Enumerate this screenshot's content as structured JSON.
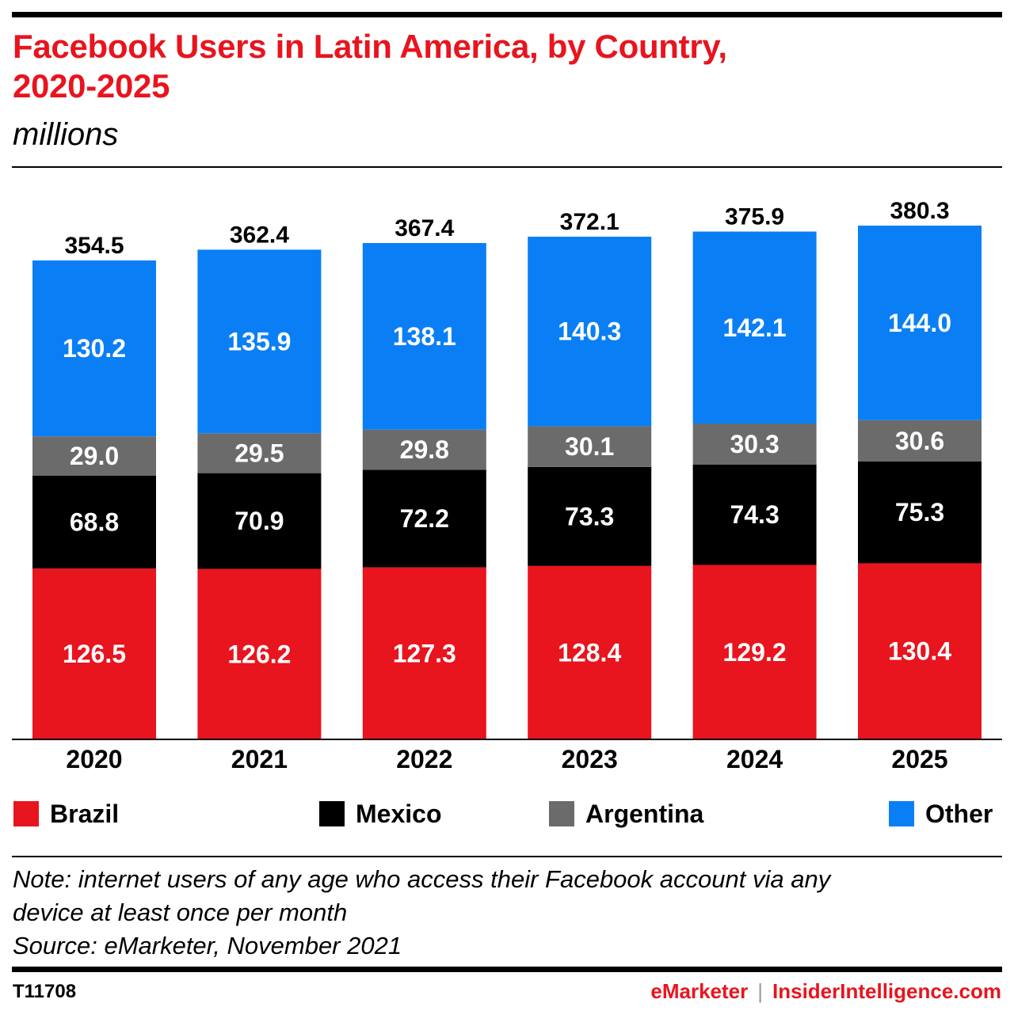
{
  "header": {
    "title_line1": "Facebook Users in Latin America, by Country,",
    "title_line2": "2020-2025",
    "subtitle": "millions"
  },
  "chart_data": {
    "type": "bar",
    "stacked": true,
    "categories": [
      "2020",
      "2021",
      "2022",
      "2023",
      "2024",
      "2025"
    ],
    "series": [
      {
        "name": "Brazil",
        "color": "#e8141e",
        "label_color": "#ffffff",
        "values": [
          126.5,
          126.2,
          127.3,
          128.4,
          129.2,
          130.4
        ]
      },
      {
        "name": "Mexico",
        "color": "#000000",
        "label_color": "#ffffff",
        "values": [
          68.8,
          70.9,
          72.2,
          73.3,
          74.3,
          75.3
        ]
      },
      {
        "name": "Argentina",
        "color": "#6b6b6b",
        "label_color": "#ffffff",
        "values": [
          29.0,
          29.5,
          29.8,
          30.1,
          30.3,
          30.6
        ]
      },
      {
        "name": "Other",
        "color": "#0a7ff5",
        "label_color": "#ffffff",
        "values": [
          130.2,
          135.9,
          138.1,
          140.3,
          142.1,
          144.0
        ]
      }
    ],
    "totals": [
      "354.5",
      "362.4",
      "367.4",
      "372.1",
      "375.9",
      "380.3"
    ],
    "value_labels": [
      [
        "126.5",
        "126.2",
        "127.3",
        "128.4",
        "129.2",
        "130.4"
      ],
      [
        "68.8",
        "70.9",
        "72.2",
        "73.3",
        "74.3",
        "75.3"
      ],
      [
        "29.0",
        "29.5",
        "29.8",
        "30.1",
        "30.3",
        "30.6"
      ],
      [
        "130.2",
        "135.9",
        "138.1",
        "140.3",
        "142.1",
        "144.0"
      ]
    ],
    "ylim": [
      0,
      380.3
    ],
    "grid": false,
    "legend_position": "bottom"
  },
  "legend": {
    "items": [
      {
        "label": "Brazil",
        "color": "#e8141e",
        "icon": "red-square-swatch"
      },
      {
        "label": "Mexico",
        "color": "#000000",
        "icon": "black-square-swatch"
      },
      {
        "label": "Argentina",
        "color": "#6b6b6b",
        "icon": "gray-square-swatch"
      },
      {
        "label": "Other",
        "color": "#0a7ff5",
        "icon": "blue-square-swatch"
      }
    ]
  },
  "notes": {
    "note_line1": "Note: internet users of any age who access their Facebook account via any",
    "note_line2": "device at least once per month",
    "source": "Source: eMarketer, November 2021"
  },
  "footer": {
    "chart_id": "T11708",
    "brand_primary": "eMarketer",
    "separator": "|",
    "brand_secondary": "InsiderIntelligence.com"
  }
}
